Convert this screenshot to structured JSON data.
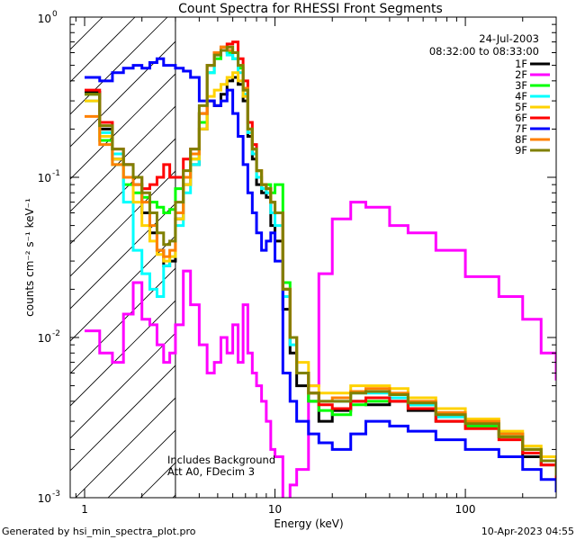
{
  "chart_data": {
    "type": "line",
    "title": "Count Spectra for RHESSI Front Segments",
    "xlabel": "Energy (keV)",
    "ylabel": "counts cm⁻² s⁻¹ keV⁻¹",
    "xscale": "log",
    "yscale": "log",
    "xlim": [
      0.84,
      300
    ],
    "ylim": [
      0.001,
      1.0
    ],
    "x_tick_labels": [
      {
        "value": 1,
        "label": "1"
      },
      {
        "value": 10,
        "label": "10"
      },
      {
        "value": 100,
        "label": "100"
      }
    ],
    "y_tick_labels": [
      {
        "value": 0.001,
        "base": "10",
        "exp": "-3"
      },
      {
        "value": 0.01,
        "base": "10",
        "exp": "-2"
      },
      {
        "value": 0.1,
        "base": "10",
        "exp": "-1"
      },
      {
        "value": 1.0,
        "base": "10",
        "exp": "0"
      }
    ],
    "shaded_region": {
      "x_from": 0.84,
      "x_to": 3,
      "style": "hatched"
    },
    "date": "24-Jul-2003",
    "time_range": "08:32:00 to 08:33:00",
    "annotations": [
      "Includes Background",
      "Att A0, FDecim 3"
    ],
    "legend_position": "top-right",
    "series": [
      {
        "name": "1F",
        "color": "#000000",
        "x": [
          1.0,
          1.2,
          1.4,
          1.6,
          1.8,
          2.0,
          2.2,
          2.4,
          2.6,
          2.8,
          3.0,
          3.3,
          3.6,
          4.0,
          4.4,
          4.8,
          5.2,
          5.6,
          6.0,
          6.4,
          6.8,
          7.2,
          7.6,
          8.0,
          8.5,
          9.0,
          9.5,
          10,
          11,
          12,
          13,
          15,
          17,
          20,
          25,
          30,
          40,
          50,
          70,
          100,
          150,
          200,
          250,
          300
        ],
        "y": [
          0.34,
          0.2,
          0.13,
          0.12,
          0.09,
          0.06,
          0.045,
          0.035,
          0.028,
          0.03,
          0.055,
          0.09,
          0.12,
          0.2,
          0.3,
          0.28,
          0.33,
          0.4,
          0.42,
          0.38,
          0.3,
          0.18,
          0.13,
          0.09,
          0.08,
          0.075,
          0.05,
          0.04,
          0.015,
          0.008,
          0.005,
          0.004,
          0.003,
          0.0035,
          0.004,
          0.0038,
          0.004,
          0.0035,
          0.003,
          0.003,
          0.0025,
          0.0018,
          0.0016,
          0.0014
        ]
      },
      {
        "name": "2F",
        "color": "#ff00ff",
        "x": [
          1.0,
          1.2,
          1.4,
          1.6,
          1.8,
          2.0,
          2.2,
          2.4,
          2.6,
          2.8,
          3.0,
          3.3,
          3.6,
          4.0,
          4.4,
          4.8,
          5.2,
          5.6,
          6.0,
          6.4,
          6.8,
          7.2,
          7.6,
          8.0,
          8.5,
          9.0,
          9.5,
          10,
          11,
          12,
          13,
          15,
          17,
          20,
          25,
          30,
          40,
          50,
          70,
          100,
          150,
          200,
          250,
          300
        ],
        "y": [
          0.011,
          0.008,
          0.007,
          0.014,
          0.022,
          0.013,
          0.012,
          0.009,
          0.007,
          0.008,
          0.012,
          0.026,
          0.016,
          0.009,
          0.006,
          0.007,
          0.01,
          0.008,
          0.012,
          0.007,
          0.016,
          0.008,
          0.006,
          0.005,
          0.004,
          0.003,
          0.002,
          0.0018,
          0.0009,
          0.0012,
          0.0015,
          0.005,
          0.025,
          0.055,
          0.07,
          0.065,
          0.05,
          0.045,
          0.035,
          0.024,
          0.018,
          0.013,
          0.008,
          0.0055
        ]
      },
      {
        "name": "3F",
        "color": "#00ff00",
        "x": [
          1.0,
          1.2,
          1.4,
          1.6,
          1.8,
          2.0,
          2.2,
          2.4,
          2.6,
          2.8,
          3.0,
          3.3,
          3.6,
          4.0,
          4.4,
          4.8,
          5.2,
          5.6,
          6.0,
          6.4,
          6.8,
          7.2,
          7.6,
          8.0,
          8.5,
          9.0,
          9.5,
          10,
          11,
          12,
          13,
          15,
          17,
          20,
          25,
          30,
          40,
          50,
          70,
          100,
          150,
          200,
          250,
          300
        ],
        "y": [
          0.33,
          0.17,
          0.12,
          0.09,
          0.08,
          0.075,
          0.07,
          0.065,
          0.06,
          0.063,
          0.085,
          0.1,
          0.13,
          0.22,
          0.45,
          0.55,
          0.62,
          0.6,
          0.55,
          0.48,
          0.35,
          0.2,
          0.15,
          0.1,
          0.085,
          0.09,
          0.08,
          0.09,
          0.022,
          0.01,
          0.006,
          0.004,
          0.0035,
          0.0033,
          0.0038,
          0.004,
          0.0042,
          0.0038,
          0.0032,
          0.0028,
          0.0024,
          0.002,
          0.0017,
          0.0014
        ]
      },
      {
        "name": "4F",
        "color": "#00ffff",
        "x": [
          1.0,
          1.2,
          1.4,
          1.6,
          1.8,
          2.0,
          2.2,
          2.4,
          2.6,
          2.8,
          3.0,
          3.3,
          3.6,
          4.0,
          4.4,
          4.8,
          5.2,
          5.6,
          6.0,
          6.4,
          6.8,
          7.2,
          7.6,
          8.0,
          8.5,
          9.0,
          9.5,
          10,
          11,
          12,
          13,
          15,
          17,
          20,
          25,
          30,
          40,
          50,
          70,
          100,
          150,
          200,
          250,
          300
        ],
        "y": [
          0.3,
          0.19,
          0.14,
          0.07,
          0.035,
          0.025,
          0.02,
          0.018,
          0.028,
          0.032,
          0.05,
          0.08,
          0.12,
          0.25,
          0.45,
          0.58,
          0.62,
          0.58,
          0.55,
          0.45,
          0.33,
          0.19,
          0.14,
          0.1,
          0.085,
          0.08,
          0.06,
          0.05,
          0.018,
          0.009,
          0.006,
          0.0045,
          0.004,
          0.004,
          0.0045,
          0.0045,
          0.0042,
          0.0038,
          0.0032,
          0.0029,
          0.0025,
          0.002,
          0.0017,
          0.0013
        ]
      },
      {
        "name": "5F",
        "color": "#ffd200",
        "x": [
          1.0,
          1.2,
          1.4,
          1.6,
          1.8,
          2.0,
          2.2,
          2.4,
          2.6,
          2.8,
          3.0,
          3.3,
          3.6,
          4.0,
          4.4,
          4.8,
          5.2,
          5.6,
          6.0,
          6.4,
          6.8,
          7.2,
          7.6,
          8.0,
          8.5,
          9.0,
          9.5,
          10,
          11,
          12,
          13,
          15,
          17,
          20,
          25,
          30,
          40,
          50,
          70,
          100,
          150,
          200,
          250,
          300
        ],
        "y": [
          0.3,
          0.18,
          0.13,
          0.1,
          0.07,
          0.05,
          0.04,
          0.033,
          0.03,
          0.032,
          0.055,
          0.09,
          0.13,
          0.2,
          0.32,
          0.35,
          0.38,
          0.42,
          0.45,
          0.4,
          0.32,
          0.2,
          0.15,
          0.11,
          0.09,
          0.085,
          0.07,
          0.06,
          0.02,
          0.01,
          0.007,
          0.005,
          0.0045,
          0.0045,
          0.005,
          0.005,
          0.0048,
          0.0042,
          0.0036,
          0.0031,
          0.0026,
          0.0021,
          0.0018,
          0.0015
        ]
      },
      {
        "name": "6F",
        "color": "#ff0000",
        "x": [
          1.0,
          1.2,
          1.4,
          1.6,
          1.8,
          2.0,
          2.2,
          2.4,
          2.6,
          2.8,
          3.0,
          3.3,
          3.6,
          4.0,
          4.4,
          4.8,
          5.2,
          5.6,
          6.0,
          6.4,
          6.8,
          7.2,
          7.6,
          8.0,
          8.5,
          9.0,
          9.5,
          10,
          11,
          12,
          13,
          15,
          17,
          20,
          25,
          30,
          40,
          50,
          70,
          100,
          150,
          200,
          250,
          300
        ],
        "y": [
          0.35,
          0.22,
          0.15,
          0.12,
          0.1,
          0.085,
          0.09,
          0.1,
          0.12,
          0.1,
          0.1,
          0.13,
          0.15,
          0.25,
          0.5,
          0.6,
          0.65,
          0.68,
          0.7,
          0.55,
          0.4,
          0.22,
          0.16,
          0.11,
          0.09,
          0.085,
          0.07,
          0.06,
          0.02,
          0.01,
          0.006,
          0.0045,
          0.0038,
          0.0036,
          0.004,
          0.0042,
          0.004,
          0.0036,
          0.003,
          0.0027,
          0.0023,
          0.0019,
          0.0016,
          0.0013
        ]
      },
      {
        "name": "7F",
        "color": "#0000ff",
        "x": [
          1.0,
          1.2,
          1.4,
          1.6,
          1.8,
          2.0,
          2.2,
          2.4,
          2.6,
          2.8,
          3.0,
          3.3,
          3.6,
          4.0,
          4.4,
          4.8,
          5.2,
          5.6,
          6.0,
          6.4,
          6.8,
          7.2,
          7.6,
          8.0,
          8.5,
          9.0,
          9.5,
          10,
          11,
          12,
          13,
          15,
          17,
          20,
          25,
          30,
          40,
          50,
          70,
          100,
          150,
          200,
          250,
          300
        ],
        "y": [
          0.42,
          0.4,
          0.45,
          0.48,
          0.5,
          0.48,
          0.52,
          0.55,
          0.5,
          0.5,
          0.48,
          0.46,
          0.42,
          0.3,
          0.3,
          0.28,
          0.3,
          0.35,
          0.25,
          0.18,
          0.12,
          0.08,
          0.06,
          0.045,
          0.035,
          0.04,
          0.045,
          0.03,
          0.006,
          0.004,
          0.003,
          0.0025,
          0.0022,
          0.002,
          0.0025,
          0.003,
          0.0028,
          0.0026,
          0.0023,
          0.002,
          0.0018,
          0.0015,
          0.0013,
          0.0011
        ]
      },
      {
        "name": "8F",
        "color": "#ff8000",
        "x": [
          1.0,
          1.2,
          1.4,
          1.6,
          1.8,
          2.0,
          2.2,
          2.4,
          2.6,
          2.8,
          3.0,
          3.3,
          3.6,
          4.0,
          4.4,
          4.8,
          5.2,
          5.6,
          6.0,
          6.4,
          6.8,
          7.2,
          7.6,
          8.0,
          8.5,
          9.0,
          9.5,
          10,
          11,
          12,
          13,
          15,
          17,
          20,
          25,
          30,
          40,
          50,
          70,
          100,
          150,
          200,
          250,
          300
        ],
        "y": [
          0.24,
          0.16,
          0.12,
          0.1,
          0.09,
          0.07,
          0.05,
          0.035,
          0.032,
          0.035,
          0.06,
          0.1,
          0.14,
          0.25,
          0.5,
          0.6,
          0.65,
          0.62,
          0.6,
          0.5,
          0.36,
          0.2,
          0.15,
          0.11,
          0.09,
          0.085,
          0.07,
          0.06,
          0.02,
          0.01,
          0.006,
          0.0045,
          0.004,
          0.0042,
          0.0046,
          0.0048,
          0.0045,
          0.004,
          0.0034,
          0.003,
          0.0025,
          0.002,
          0.0017,
          0.0014
        ]
      },
      {
        "name": "9F",
        "color": "#808000",
        "x": [
          1.0,
          1.2,
          1.4,
          1.6,
          1.8,
          2.0,
          2.2,
          2.4,
          2.6,
          2.8,
          3.0,
          3.3,
          3.6,
          4.0,
          4.4,
          4.8,
          5.2,
          5.6,
          6.0,
          6.4,
          6.8,
          7.2,
          7.6,
          8.0,
          8.5,
          9.0,
          9.5,
          10,
          11,
          12,
          13,
          15,
          17,
          20,
          25,
          30,
          40,
          50,
          70,
          100,
          150,
          200,
          250,
          300
        ],
        "y": [
          0.33,
          0.21,
          0.15,
          0.12,
          0.1,
          0.08,
          0.06,
          0.045,
          0.038,
          0.04,
          0.07,
          0.11,
          0.15,
          0.28,
          0.5,
          0.58,
          0.62,
          0.65,
          0.6,
          0.5,
          0.35,
          0.2,
          0.15,
          0.11,
          0.09,
          0.085,
          0.07,
          0.06,
          0.02,
          0.01,
          0.006,
          0.0045,
          0.004,
          0.004,
          0.0045,
          0.0046,
          0.0044,
          0.0039,
          0.0033,
          0.0029,
          0.0024,
          0.002,
          0.0017,
          0.0014
        ]
      }
    ]
  },
  "footer": {
    "left": "Generated by hsi_min_spectra_plot.pro",
    "right": "10-Apr-2023 04:55"
  }
}
